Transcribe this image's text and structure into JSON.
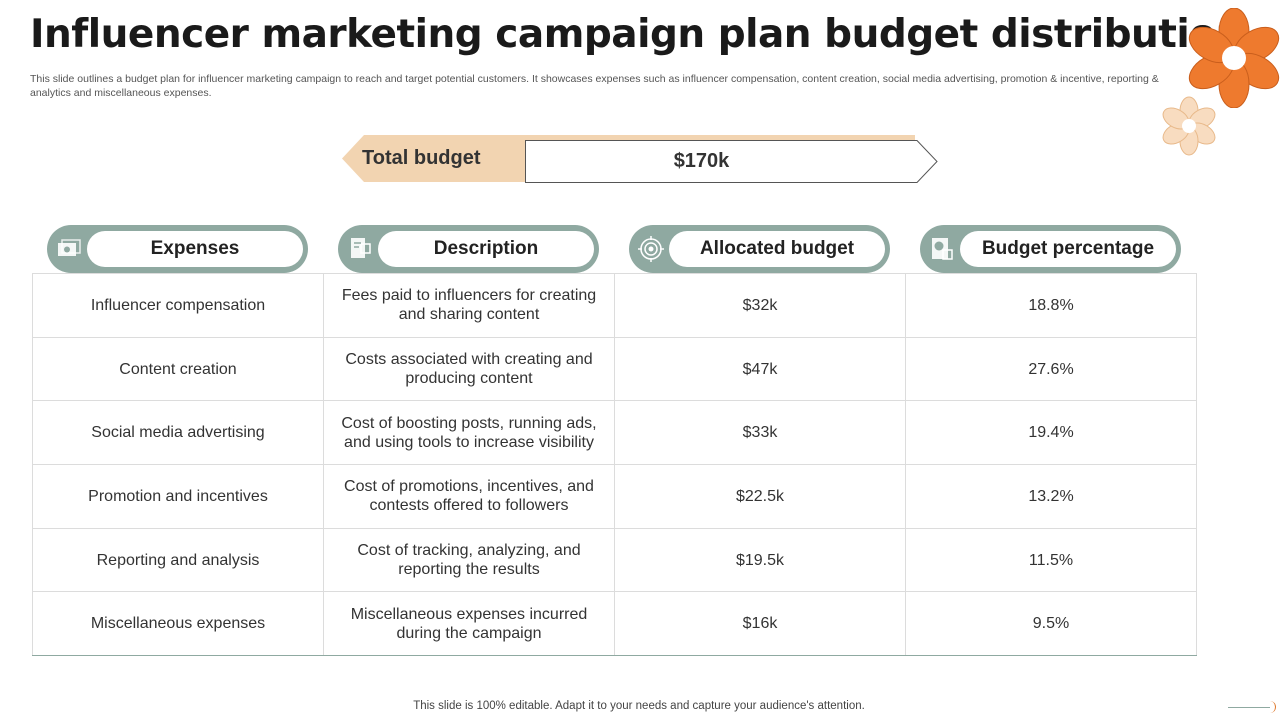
{
  "title": "Influencer marketing campaign plan budget distribution",
  "subtitle": "This slide outlines a budget plan for influencer marketing campaign to reach and target potential customers. It showcases expenses such as influencer compensation, content creation, social media advertising, promotion & incentive, reporting & analytics and miscellaneous expenses.",
  "total_budget": {
    "label": "Total budget",
    "value": "$170k"
  },
  "headers": [
    {
      "label": "Expenses",
      "icon": "money-icon"
    },
    {
      "label": "Description",
      "icon": "document-icon"
    },
    {
      "label": "Allocated budget",
      "icon": "target-icon"
    },
    {
      "label": "Budget percentage",
      "icon": "chart-icon"
    }
  ],
  "rows": [
    {
      "expense": "Influencer  compensation",
      "description": "Fees paid to influencers  for creating and sharing content",
      "allocated": "$32k",
      "percentage": "18.8%"
    },
    {
      "expense": "Content creation",
      "description": "Costs associated with creating and producing content",
      "allocated": "$47k",
      "percentage": "27.6%"
    },
    {
      "expense": "Social media advertising",
      "description": "Cost of boosting posts, running ads, and using tools to increase visibility",
      "allocated": "$33k",
      "percentage": "19.4%"
    },
    {
      "expense": "Promotion and incentives",
      "description": "Cost of promotions, incentives, and contests offered to followers",
      "allocated": "$22.5k",
      "percentage": "13.2%"
    },
    {
      "expense": "Reporting and analysis",
      "description": "Cost of tracking, analyzing,  and reporting the results",
      "allocated": "$19.5k",
      "percentage": "11.5%"
    },
    {
      "expense": "Miscellaneous expenses",
      "description": "Miscellaneous expenses incurred during the campaign",
      "allocated": "$16k",
      "percentage": "9.5%"
    }
  ],
  "footer": "This slide is 100% editable. Adapt it to your needs and capture your audience's attention.",
  "colors": {
    "accent": "#8fa9a1",
    "peach": "#f2d4b1",
    "flower": "#ee7a2e",
    "flower_light": "#f8dcc0"
  }
}
